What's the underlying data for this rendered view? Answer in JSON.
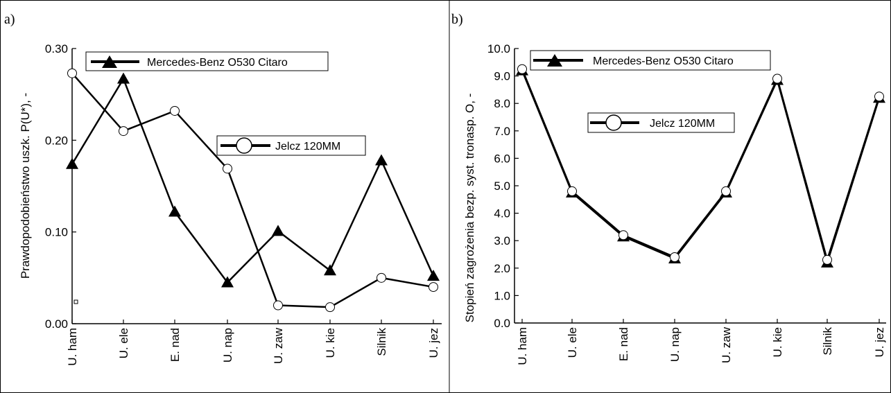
{
  "chart_data": [
    {
      "type": "line",
      "panel_label": "a)",
      "title": "",
      "xlabel": "",
      "ylabel": "Prawdopodobieństwo uszk. P(U*),  -",
      "ylim": [
        0,
        0.3
      ],
      "yticks": [
        "0.00",
        "0.10",
        "0.20",
        "0.30"
      ],
      "categories": [
        "U. ham",
        "U. ele",
        "E. nad",
        "U. nap",
        "U. zaw",
        "U. kie",
        "Silnik",
        "U. jez"
      ],
      "legend": [
        "top-center",
        "right-center"
      ],
      "series": [
        {
          "name": "Mercedes-Benz O530 Citaro",
          "marker": "filled-triangle",
          "values": [
            0.174,
            0.267,
            0.122,
            0.045,
            0.101,
            0.058,
            0.178,
            0.052
          ]
        },
        {
          "name": "Jelcz 120MM",
          "marker": "open-circle",
          "values": [
            0.273,
            0.21,
            0.232,
            0.169,
            0.02,
            0.018,
            0.05,
            0.04
          ]
        }
      ]
    },
    {
      "type": "line",
      "panel_label": "b)",
      "title": "",
      "xlabel": "",
      "ylabel": "Stopień zagrożenia bezp. syst. tronasp. O,  -",
      "ylim": [
        0,
        10
      ],
      "yticks": [
        "0.0",
        "1.0",
        "2.0",
        "3.0",
        "4.0",
        "5.0",
        "6.0",
        "7.0",
        "8.0",
        "9.0",
        "10.0"
      ],
      "categories": [
        "U. ham",
        "U. ele",
        "E. nad",
        "U. nap",
        "U. zaw",
        "U. kie",
        "Silnik",
        "U. jez"
      ],
      "legend": [
        "top-left",
        "top-center"
      ],
      "series": [
        {
          "name": "Mercedes-Benz O530 Citaro",
          "marker": "filled-triangle",
          "values": [
            9.2,
            4.75,
            3.15,
            2.35,
            4.75,
            8.85,
            2.2,
            8.2
          ]
        },
        {
          "name": "Jelcz 120MM",
          "marker": "open-circle",
          "values": [
            9.25,
            4.8,
            3.2,
            2.4,
            4.8,
            8.9,
            2.3,
            8.25
          ]
        }
      ]
    }
  ]
}
